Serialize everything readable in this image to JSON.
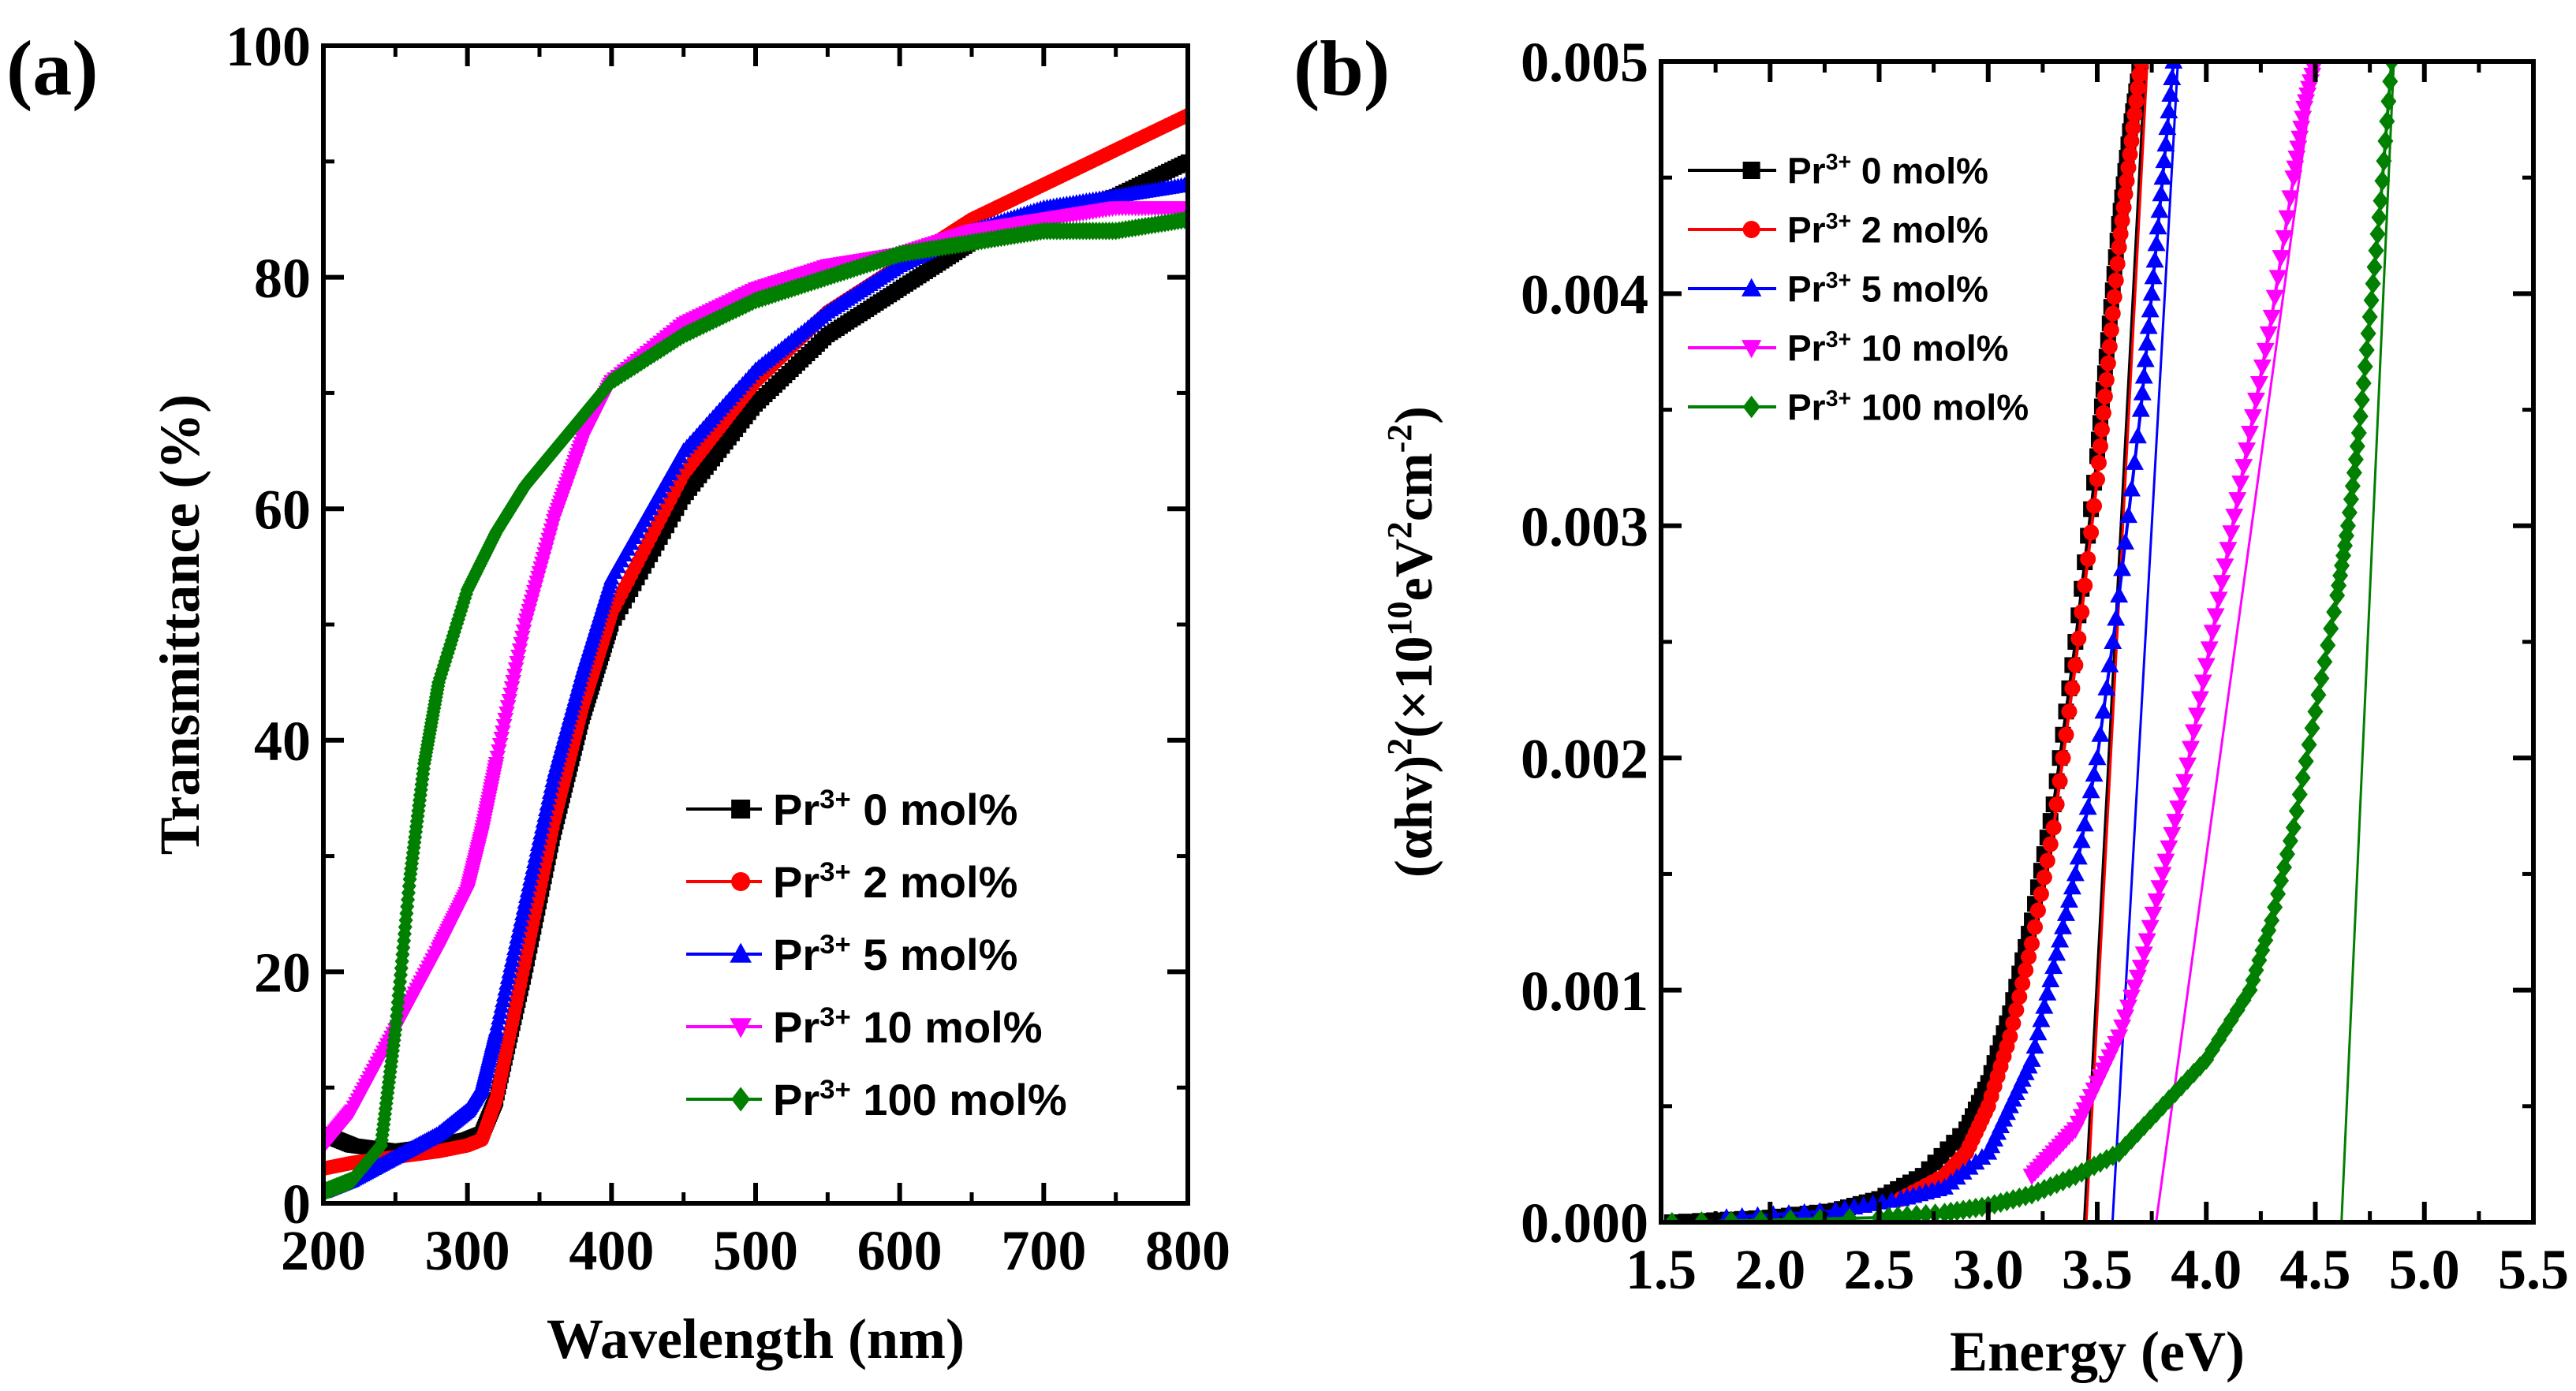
{
  "chart_data": [
    {
      "type": "line",
      "panel_label": "(a)",
      "title": "",
      "xlabel": "Wavelength (nm)",
      "ylabel": "Transmittance (%)",
      "xlim": [
        200,
        800
      ],
      "ylim": [
        0,
        100
      ],
      "xticks": [
        "200",
        "300",
        "400",
        "500",
        "600",
        "700",
        "800"
      ],
      "yticks": [
        "0",
        "20",
        "40",
        "60",
        "80",
        "100"
      ],
      "legend_position": "bottom-right",
      "series": [
        {
          "name": "Pr3+ 0 mol%",
          "legend_prefix": "Pr",
          "legend_sup": "3+",
          "legend_suffix": " 0 mol%",
          "color": "#000000",
          "marker": "square",
          "x": [
            200,
            220,
            250,
            280,
            300,
            310,
            320,
            340,
            360,
            380,
            400,
            450,
            500,
            550,
            600,
            650,
            700,
            750,
            800
          ],
          "y": [
            6,
            5,
            4.5,
            5,
            5.5,
            6,
            9,
            20,
            32,
            42,
            50,
            61,
            69,
            75,
            79,
            83,
            85,
            87,
            90
          ]
        },
        {
          "name": "Pr3+ 2 mol%",
          "legend_prefix": "Pr",
          "legend_sup": "3+",
          "legend_suffix": " 2 mol%",
          "color": "#ff0000",
          "marker": "circle",
          "x": [
            200,
            220,
            250,
            280,
            300,
            310,
            320,
            340,
            360,
            380,
            400,
            450,
            500,
            550,
            600,
            650,
            700,
            750,
            800
          ],
          "y": [
            3,
            3.5,
            4,
            4.5,
            5,
            5.5,
            9,
            21,
            33,
            43,
            51,
            63,
            71,
            77,
            81,
            85,
            88,
            91,
            94
          ]
        },
        {
          "name": "Pr3+ 5 mol%",
          "legend_prefix": "Pr",
          "legend_sup": "3+",
          "legend_suffix": " 5 mol%",
          "color": "#0000ff",
          "marker": "triangle-up",
          "x": [
            200,
            220,
            250,
            280,
            300,
            310,
            320,
            340,
            360,
            380,
            400,
            450,
            500,
            550,
            600,
            650,
            700,
            750,
            800
          ],
          "y": [
            1,
            2,
            4,
            6,
            8,
            10,
            15,
            26,
            37,
            46,
            54,
            65,
            72,
            77,
            81,
            84,
            86,
            87,
            88
          ]
        },
        {
          "name": "Pr3+ 10 mol%",
          "legend_prefix": "Pr",
          "legend_sup": "3+",
          "legend_suffix": " 10 mol%",
          "color": "#ff00ff",
          "marker": "triangle-down",
          "x": [
            200,
            220,
            250,
            280,
            300,
            310,
            320,
            340,
            360,
            380,
            400,
            450,
            500,
            550,
            600,
            650,
            700,
            750,
            800
          ],
          "y": [
            5,
            8,
            15,
            22,
            27,
            32,
            38,
            50,
            59,
            66,
            71,
            76,
            79,
            81,
            82,
            84,
            85,
            86,
            86
          ]
        },
        {
          "name": "Pr3+ 100 mol%",
          "legend_prefix": "Pr",
          "legend_sup": "3+",
          "legend_suffix": " 100 mol%",
          "color": "#007f00",
          "marker": "diamond",
          "x": [
            200,
            220,
            240,
            250,
            260,
            270,
            280,
            300,
            320,
            340,
            360,
            380,
            400,
            450,
            500,
            550,
            600,
            650,
            700,
            750,
            800
          ],
          "y": [
            1,
            2,
            5,
            15,
            28,
            38,
            45,
            53,
            58,
            62,
            65,
            68,
            71,
            75,
            78,
            80,
            82,
            83,
            84,
            84,
            85
          ]
        }
      ]
    },
    {
      "type": "line",
      "panel_label": "(b)",
      "title": "",
      "xlabel": "Energy (eV)",
      "ylabel_parts": [
        "(αhv)",
        "2",
        "(×10",
        "10",
        "eV",
        "2",
        "cm",
        "-2",
        ")"
      ],
      "xlim": [
        1.5,
        5.5
      ],
      "ylim": [
        0,
        0.005
      ],
      "xticks": [
        "1.5",
        "2.0",
        "2.5",
        "3.0",
        "3.5",
        "4.0",
        "4.5",
        "5.0",
        "5.5"
      ],
      "yticks": [
        "0.000",
        "0.001",
        "0.002",
        "0.003",
        "0.004",
        "0.005"
      ],
      "legend_position": "top-left",
      "series": [
        {
          "name": "Pr3+ 0 mol%",
          "legend_prefix": "Pr",
          "legend_sup": "3+",
          "legend_suffix": " 0 mol%",
          "color": "#000000",
          "marker": "square",
          "x": [
            1.55,
            2.0,
            2.3,
            2.5,
            2.7,
            2.9,
            3.0,
            3.1,
            3.2,
            3.3,
            3.4,
            3.5,
            3.55,
            3.6,
            3.65,
            3.7
          ],
          "y": [
            0.0,
            2e-05,
            5e-05,
            0.0001,
            0.0002,
            0.0004,
            0.0006,
            0.0009,
            0.0013,
            0.0018,
            0.0025,
            0.0033,
            0.0038,
            0.0043,
            0.0047,
            0.005
          ],
          "fit_line": {
            "x": [
              3.44,
              3.72
            ],
            "y": [
              0,
              0.005
            ]
          }
        },
        {
          "name": "Pr3+ 2 mol%",
          "legend_prefix": "Pr",
          "legend_sup": "3+",
          "legend_suffix": " 2 mol%",
          "color": "#ff0000",
          "marker": "circle",
          "x": [
            2.6,
            2.8,
            2.9,
            3.0,
            3.1,
            3.2,
            3.3,
            3.4,
            3.5,
            3.55,
            3.6,
            3.65,
            3.7
          ],
          "y": [
            0.0001,
            0.0002,
            0.0003,
            0.0005,
            0.0008,
            0.0012,
            0.0017,
            0.0024,
            0.0032,
            0.0037,
            0.0042,
            0.0046,
            0.005
          ],
          "fit_line": {
            "x": [
              3.45,
              3.73
            ],
            "y": [
              0,
              0.005
            ]
          }
        },
        {
          "name": "Pr3+ 5 mol%",
          "legend_prefix": "Pr",
          "legend_sup": "3+",
          "legend_suffix": " 5 mol%",
          "color": "#0000ff",
          "marker": "triangle-up",
          "x": [
            1.8,
            2.3,
            2.6,
            2.8,
            3.0,
            3.1,
            3.2,
            3.3,
            3.4,
            3.5,
            3.6,
            3.7,
            3.75,
            3.8,
            3.85
          ],
          "y": [
            2e-05,
            5e-05,
            0.0001,
            0.00015,
            0.0003,
            0.0005,
            0.0007,
            0.0011,
            0.0015,
            0.002,
            0.0027,
            0.0035,
            0.004,
            0.0045,
            0.005
          ],
          "fit_line": {
            "x": [
              3.57,
              3.87
            ],
            "y": [
              0,
              0.005
            ]
          }
        },
        {
          "name": "Pr3+ 10 mol%",
          "legend_prefix": "Pr",
          "legend_sup": "3+",
          "legend_suffix": " 10 mol%",
          "color": "#ff00ff",
          "marker": "triangle-down",
          "x": [
            3.2,
            3.3,
            3.4,
            3.5,
            3.6,
            3.7,
            3.8,
            3.9,
            4.0,
            4.1,
            4.2,
            4.3,
            4.4,
            4.45,
            4.5
          ],
          "y": [
            0.0002,
            0.0003,
            0.0004,
            0.0006,
            0.0008,
            0.0011,
            0.0015,
            0.0019,
            0.0024,
            0.0029,
            0.0034,
            0.0039,
            0.0045,
            0.0048,
            0.005
          ],
          "fit_line": {
            "x": [
              3.77,
              4.5
            ],
            "y": [
              0,
              0.005
            ]
          }
        },
        {
          "name": "Pr3+ 100 mol%",
          "legend_prefix": "Pr",
          "legend_sup": "3+",
          "legend_suffix": " 100 mol%",
          "color": "#007f00",
          "marker": "diamond",
          "x": [
            1.55,
            2.5,
            2.8,
            3.0,
            3.2,
            3.4,
            3.6,
            3.8,
            4.0,
            4.2,
            4.3,
            4.4,
            4.5,
            4.6,
            4.65,
            4.7,
            4.75,
            4.8,
            4.85
          ],
          "y": [
            0.0,
            2e-05,
            4e-05,
            7e-05,
            0.00012,
            0.0002,
            0.0003,
            0.0005,
            0.0007,
            0.001,
            0.0013,
            0.0017,
            0.0022,
            0.0027,
            0.003,
            0.0034,
            0.0039,
            0.0044,
            0.005
          ],
          "fit_line": {
            "x": [
              4.62,
              4.86
            ],
            "y": [
              0,
              0.005
            ]
          }
        }
      ]
    }
  ]
}
